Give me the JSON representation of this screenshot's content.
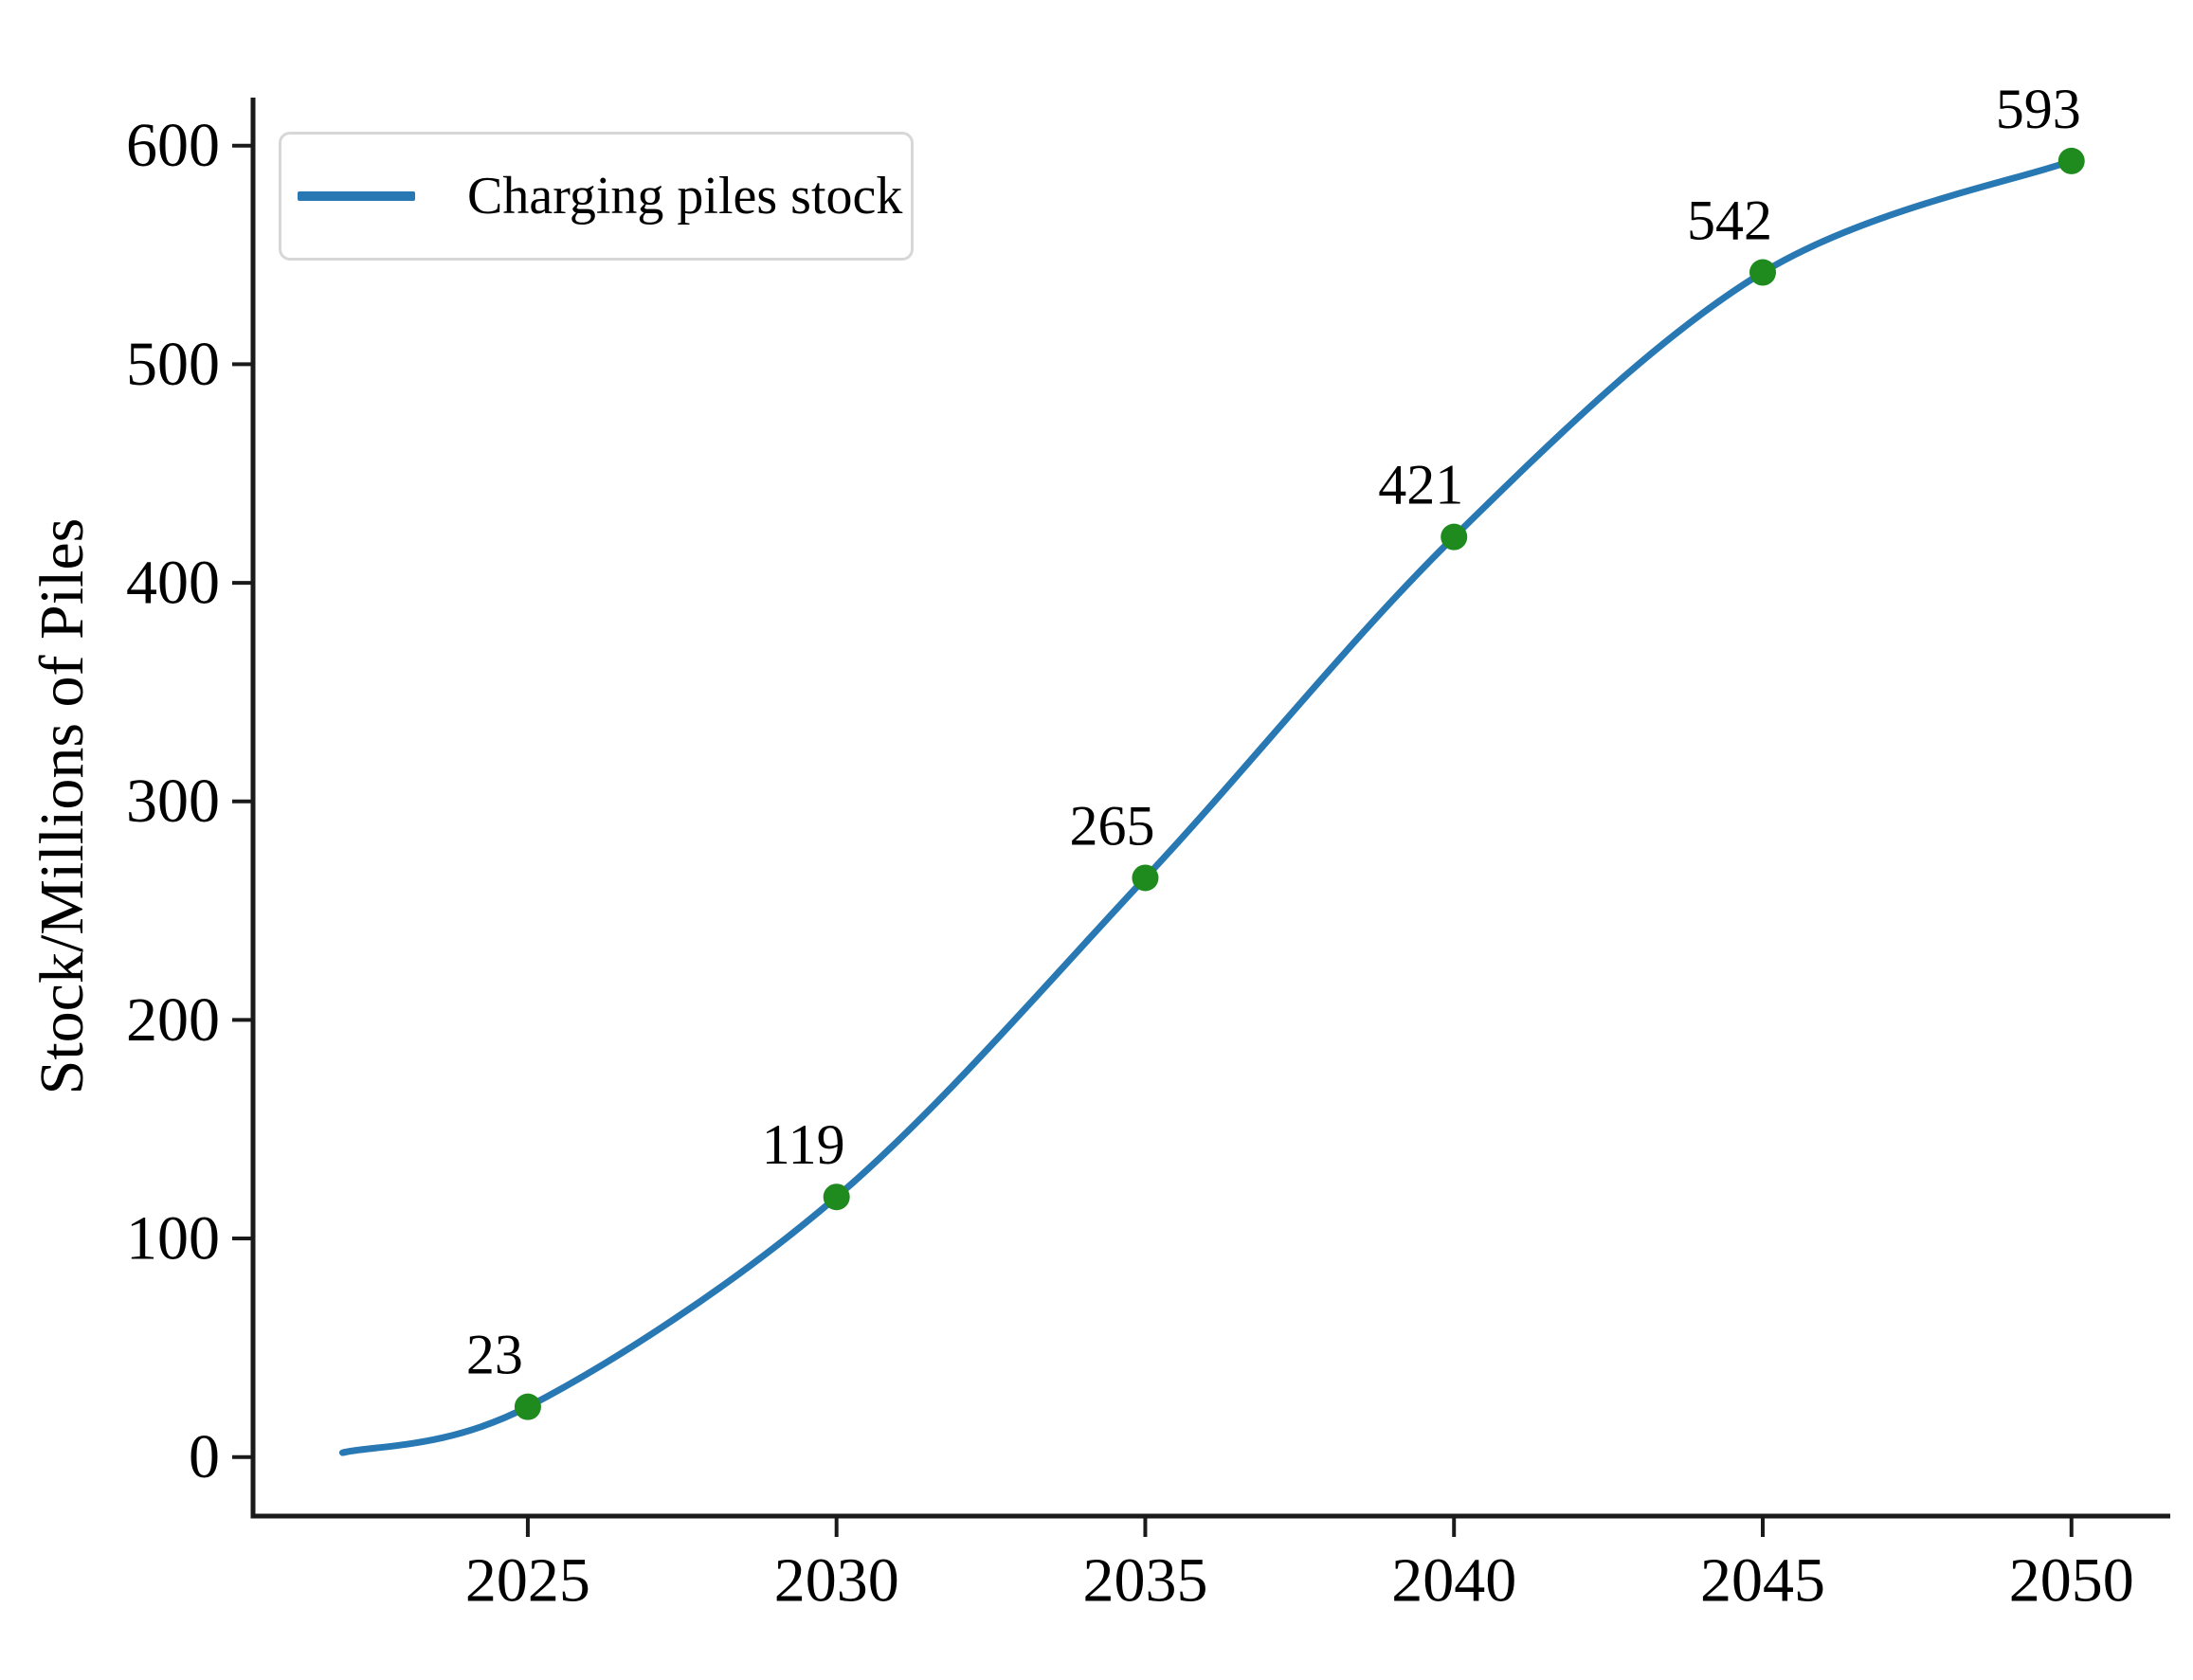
{
  "figure": {
    "background": "#ffffff"
  },
  "chart_data": {
    "type": "line",
    "title": "",
    "xlabel": "",
    "ylabel": "Stock/Millions of Piles",
    "legend": {
      "label": "Charging piles stock",
      "position": "upper left"
    },
    "grid": false,
    "xlim": [
      2020.55,
      2051.6
    ],
    "ylim": [
      -27,
      622
    ],
    "xticks": {
      "values": [
        2025,
        2030,
        2035,
        2040,
        2045,
        2050
      ],
      "labels": [
        "2025",
        "2030",
        "2035",
        "2040",
        "2045",
        "2050"
      ]
    },
    "yticks": {
      "values": [
        0,
        100,
        200,
        300,
        400,
        500,
        600
      ],
      "labels": [
        "0",
        "100",
        "200",
        "300",
        "400",
        "500",
        "600"
      ]
    },
    "series": [
      {
        "name": "Charging piles stock",
        "color": "#2878b4",
        "line_width": 7,
        "x": [
          2022,
          2025,
          2030,
          2035,
          2040,
          2045,
          2050
        ],
        "y": [
          2,
          23,
          119,
          265,
          421,
          542,
          593
        ]
      }
    ],
    "markers": {
      "color": "#1f8b1f",
      "radius": 14,
      "points": [
        {
          "x": 2025,
          "y": 23,
          "label": "23"
        },
        {
          "x": 2030,
          "y": 119,
          "label": "119"
        },
        {
          "x": 2035,
          "y": 265,
          "label": "265"
        },
        {
          "x": 2040,
          "y": 421,
          "label": "421"
        },
        {
          "x": 2045,
          "y": 542,
          "label": "542"
        },
        {
          "x": 2050,
          "y": 593,
          "label": "593"
        }
      ],
      "label_offset": [
        -35,
        -55
      ]
    },
    "axis_color": "#1a1a1a"
  }
}
